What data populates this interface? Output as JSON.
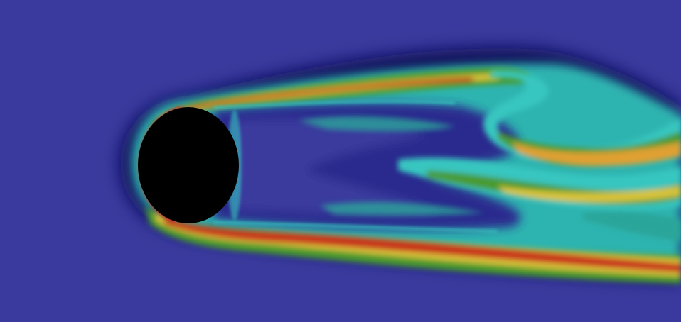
{
  "scene": {
    "subject": "cylinder-wake-field",
    "colors": {
      "background": "#3a3a9e",
      "cylinder": "#000000",
      "dark_blue": "#0a0a55",
      "cyan": "#37c6c0",
      "teal": "#2aa59a",
      "green": "#4a9a2e",
      "yellow": "#d8c23a",
      "orange": "#e0782a",
      "red": "#c8321e"
    }
  }
}
